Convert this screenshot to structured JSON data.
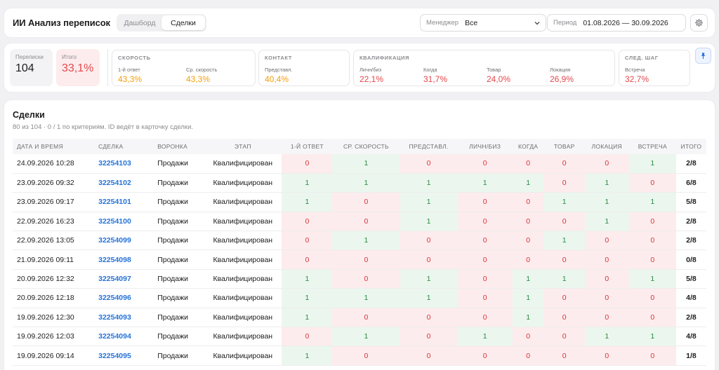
{
  "app": {
    "title": "ИИ Анализ переписок"
  },
  "tabs": [
    {
      "label": "Дашборд",
      "active": false
    },
    {
      "label": "Сделки",
      "active": true
    }
  ],
  "filters": {
    "manager_label": "Менеджер",
    "manager_value": "Все",
    "period_label": "Период",
    "period_value": "01.08.2026 — 30.09.2026"
  },
  "kpis": {
    "total_label": "Переписки",
    "total_value": "104",
    "score_label": "Итого",
    "score_value": "33,1%"
  },
  "groups": [
    {
      "title": "СКОРОСТЬ",
      "items": [
        {
          "label": "1-й ответ",
          "value": "43,3%",
          "tone": "orange"
        },
        {
          "label": "Ср. скорость",
          "value": "43,3%",
          "tone": "orange"
        }
      ]
    },
    {
      "title": "КОНТАКТ",
      "items": [
        {
          "label": "Представл.",
          "value": "40,4%",
          "tone": "orange"
        }
      ]
    },
    {
      "title": "КВАЛИФИКАЦИЯ",
      "items": [
        {
          "label": "Личн/биз",
          "value": "22,1%",
          "tone": "red"
        },
        {
          "label": "Когда",
          "value": "31,7%",
          "tone": "red"
        },
        {
          "label": "Товар",
          "value": "24,0%",
          "tone": "red"
        },
        {
          "label": "Локация",
          "value": "26,9%",
          "tone": "red"
        }
      ]
    },
    {
      "title": "СЛЕД. ШАГ",
      "items": [
        {
          "label": "Встреча",
          "value": "32,7%",
          "tone": "red"
        }
      ]
    }
  ],
  "deals": {
    "title": "Сделки",
    "subtitle": "80 из 104 · 0 / 1 по критериям. ID ведёт в карточку сделки.",
    "columns": [
      "ДАТА И ВРЕМЯ",
      "СДЕЛКА",
      "ВОРОНКА",
      "ЭТАП",
      "1-Й ОТВЕТ",
      "СР. СКОРОСТЬ",
      "ПРЕДСТАВЛ.",
      "ЛИЧН/БИЗ",
      "КОГДА",
      "ТОВАР",
      "ЛОКАЦИЯ",
      "ВСТРЕЧА",
      "ИТОГО"
    ],
    "rows": [
      {
        "date": "24.09.2026 10:28",
        "id": "32254103",
        "funnel": "Продажи",
        "stage": "Квалифицирован",
        "scores": [
          0,
          1,
          0,
          0,
          0,
          0,
          0,
          1
        ],
        "total": "2/8"
      },
      {
        "date": "23.09.2026 09:32",
        "id": "32254102",
        "funnel": "Продажи",
        "stage": "Квалифицирован",
        "scores": [
          1,
          1,
          1,
          1,
          1,
          0,
          1,
          0
        ],
        "total": "6/8"
      },
      {
        "date": "23.09.2026 09:17",
        "id": "32254101",
        "funnel": "Продажи",
        "stage": "Квалифицирован",
        "scores": [
          1,
          0,
          1,
          0,
          0,
          1,
          1,
          1
        ],
        "total": "5/8"
      },
      {
        "date": "22.09.2026 16:23",
        "id": "32254100",
        "funnel": "Продажи",
        "stage": "Квалифицирован",
        "scores": [
          0,
          0,
          1,
          0,
          0,
          0,
          1,
          0
        ],
        "total": "2/8"
      },
      {
        "date": "22.09.2026 13:05",
        "id": "32254099",
        "funnel": "Продажи",
        "stage": "Квалифицирован",
        "scores": [
          0,
          1,
          0,
          0,
          0,
          1,
          0,
          0
        ],
        "total": "2/8"
      },
      {
        "date": "21.09.2026 09:11",
        "id": "32254098",
        "funnel": "Продажи",
        "stage": "Квалифицирован",
        "scores": [
          0,
          0,
          0,
          0,
          0,
          0,
          0,
          0
        ],
        "total": "0/8"
      },
      {
        "date": "20.09.2026 12:32",
        "id": "32254097",
        "funnel": "Продажи",
        "stage": "Квалифицирован",
        "scores": [
          1,
          0,
          1,
          0,
          1,
          1,
          0,
          1
        ],
        "total": "5/8"
      },
      {
        "date": "20.09.2026 12:18",
        "id": "32254096",
        "funnel": "Продажи",
        "stage": "Квалифицирован",
        "scores": [
          1,
          1,
          1,
          0,
          1,
          0,
          0,
          0
        ],
        "total": "4/8"
      },
      {
        "date": "19.09.2026 12:30",
        "id": "32254093",
        "funnel": "Продажи",
        "stage": "Квалифицирован",
        "scores": [
          1,
          0,
          0,
          0,
          1,
          0,
          0,
          0
        ],
        "total": "2/8"
      },
      {
        "date": "19.09.2026 12:03",
        "id": "32254094",
        "funnel": "Продажи",
        "stage": "Квалифицирован",
        "scores": [
          0,
          1,
          0,
          1,
          0,
          0,
          1,
          1
        ],
        "total": "4/8"
      },
      {
        "date": "19.09.2026 09:14",
        "id": "32254095",
        "funnel": "Продажи",
        "stage": "Квалифицирован",
        "scores": [
          1,
          0,
          0,
          0,
          0,
          0,
          0,
          0
        ],
        "total": "1/8"
      }
    ]
  },
  "colors": {
    "positive_bg": "#ebf7ee",
    "positive_text": "#2a8a44",
    "negative_bg": "#fdeced",
    "negative_text": "#d9333a",
    "link": "#2673d8",
    "orange": "#f59e0b",
    "red": "#e5484d"
  },
  "icons": [
    "chevron-down-icon",
    "settings-gear-icon",
    "pin-icon"
  ]
}
